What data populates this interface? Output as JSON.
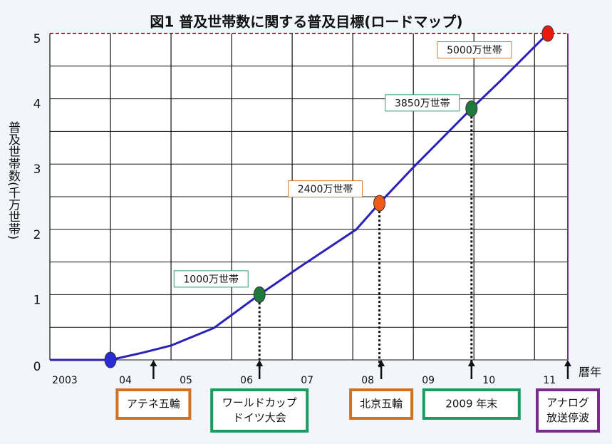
{
  "chart_data": {
    "type": "line",
    "title": "図1 普及世帯数に関する普及目標(ロードマップ)",
    "y_label": "普及世帯数(千万世帯)",
    "x_label": "暦年",
    "xlim": [
      2003,
      2011.55
    ],
    "ylim": [
      0,
      5
    ],
    "xticks": [
      {
        "value": 2003,
        "label": "2003"
      },
      {
        "value": 2004,
        "label": "04"
      },
      {
        "value": 2005,
        "label": "05"
      },
      {
        "value": 2006,
        "label": "06"
      },
      {
        "value": 2007,
        "label": "07"
      },
      {
        "value": 2008,
        "label": "08"
      },
      {
        "value": 2009,
        "label": "09"
      },
      {
        "value": 2010,
        "label": "10"
      },
      {
        "value": 2011,
        "label": "11"
      }
    ],
    "yticks": [
      0,
      1,
      2,
      3,
      4,
      5
    ],
    "y_minor_ticks": [
      0.5,
      1.5,
      2.5,
      3.5,
      4.5
    ],
    "grid": true,
    "series": [
      {
        "color": "#2a22b8",
        "x": [
          2003,
          2004.0,
          2004.53,
          2005.0,
          2005.71,
          2006.46,
          2007.12,
          2008.06,
          2008.44,
          2009.0,
          2009.96,
          2010.41,
          2011.22
        ],
        "values": [
          0,
          0,
          0.11,
          0.22,
          0.49,
          1.0,
          1.42,
          2.0,
          2.4,
          2.95,
          3.85,
          4.25,
          5.0
        ]
      }
    ],
    "milestones": {
      "x": [
        2004.0,
        2006.46,
        2008.44,
        2009.96,
        2011.22
      ],
      "values": [
        0,
        1.0,
        2.4,
        3.85,
        5.0
      ],
      "colors": [
        "#2b2bd6",
        "#1e7a3c",
        "#f05a1a",
        "#1e7a3c",
        "#e81a10"
      ],
      "labels": [
        null,
        "1000万世帯",
        "2400万世帯",
        "3850万世帯",
        "5000万世帯"
      ],
      "label_colors": [
        null,
        "#2aa07a",
        "#d07a30",
        "#2aa07a",
        "#d07a30"
      ]
    },
    "events": [
      {
        "x": 2004.71,
        "lines": [
          "アテネ五輪"
        ],
        "color": "#d07020"
      },
      {
        "x": 2006.46,
        "lines": [
          "ワールドカップ",
          "ドイツ大会"
        ],
        "color": "#1e9a60"
      },
      {
        "x": 2008.47,
        "lines": [
          "北京五輪"
        ],
        "color": "#d07020"
      },
      {
        "x": 2009.96,
        "lines": [
          "2009 年末"
        ],
        "color": "#1e9a60"
      },
      {
        "x": 2011.55,
        "lines": [
          "アナログ",
          "放送停波"
        ],
        "color": "#7a2a8a"
      }
    ]
  }
}
